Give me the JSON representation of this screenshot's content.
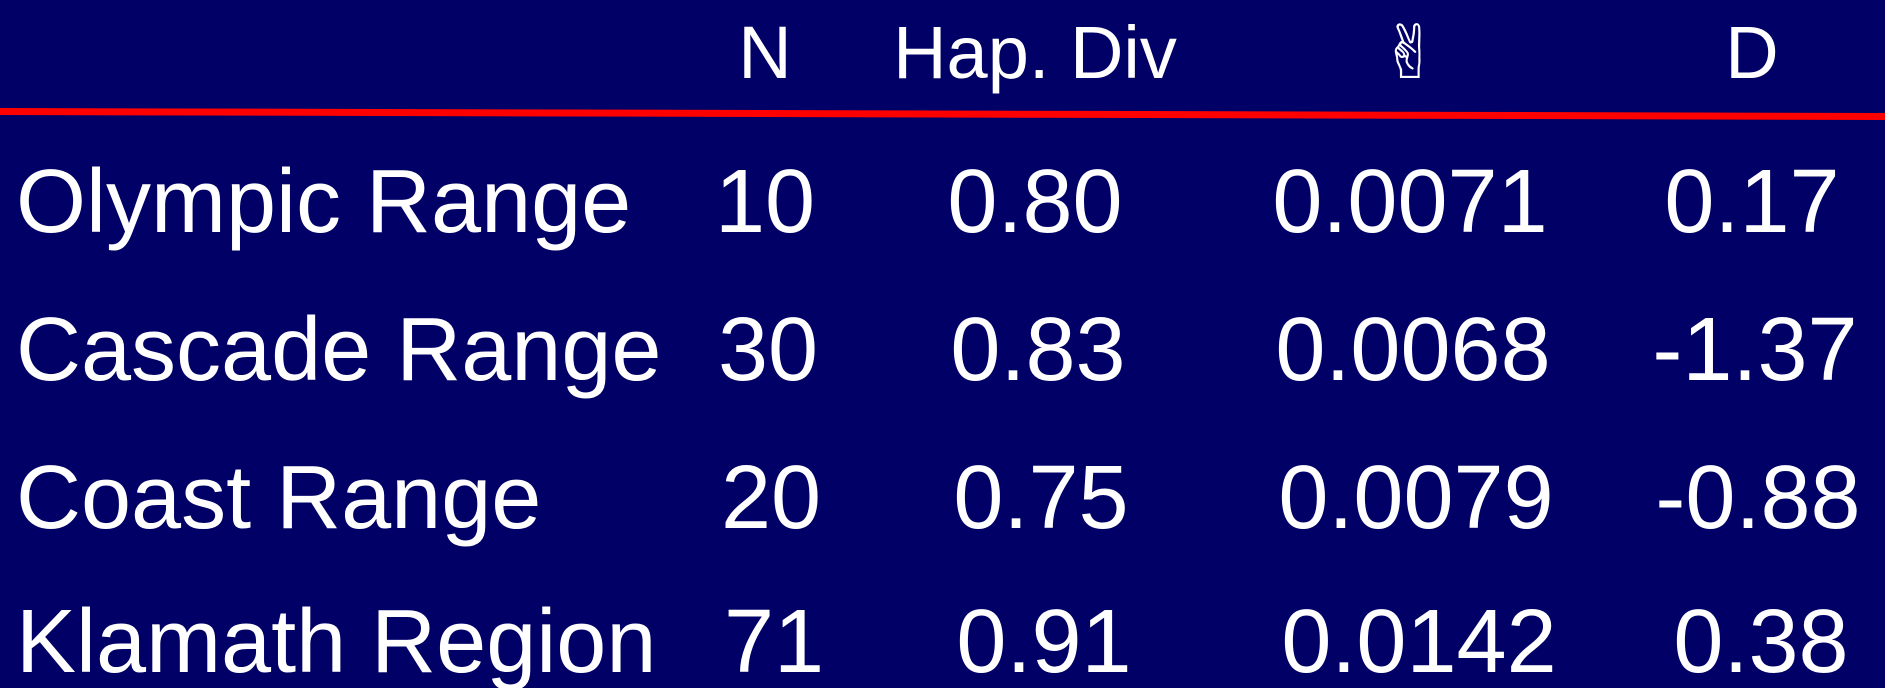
{
  "table": {
    "header": [
      "N",
      "Hap. Div",
      "✌",
      "D"
    ],
    "rows": [
      [
        "Olympic Range",
        "10",
        "0.80",
        "0.0071",
        "0.17"
      ],
      [
        "Cascade Range",
        "30",
        "0.83",
        "0.0068",
        "-1.37"
      ],
      [
        "Coast Range",
        "20",
        "0.75",
        "0.0079",
        "-0.88"
      ],
      [
        "Klamath Region",
        "71",
        "0.91",
        "0.0142",
        "0.38"
      ]
    ]
  }
}
